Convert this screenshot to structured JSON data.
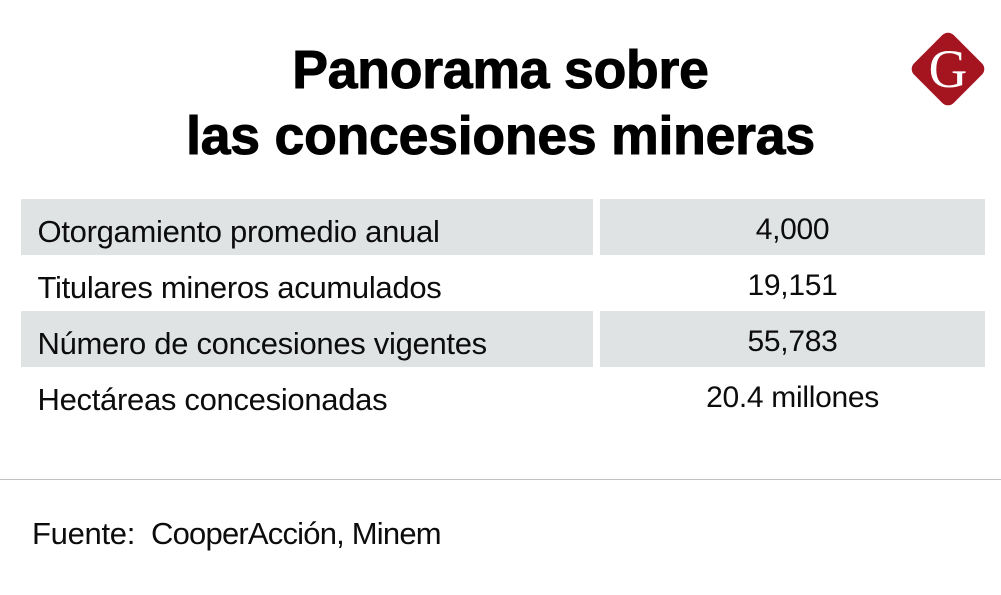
{
  "header": {
    "title_line1": "Panorama sobre",
    "title_line2": "las concesiones mineras",
    "logo": {
      "letter": "G",
      "color": "#a41520",
      "letter_color": "#ffffff"
    }
  },
  "table": {
    "stripe_color": "#dfe3e4",
    "rows": [
      {
        "label": "Otorgamiento promedio anual",
        "value": "4,000"
      },
      {
        "label": "Titulares mineros acumulados",
        "value": "19,151"
      },
      {
        "label": "Número de concesiones vigentes",
        "value": "55,783"
      },
      {
        "label": "Hectáreas concesionadas",
        "value": "20.4 millones"
      }
    ]
  },
  "footer": {
    "source_label": "Fuente:",
    "source_value": "CooperAcción, Minem"
  }
}
